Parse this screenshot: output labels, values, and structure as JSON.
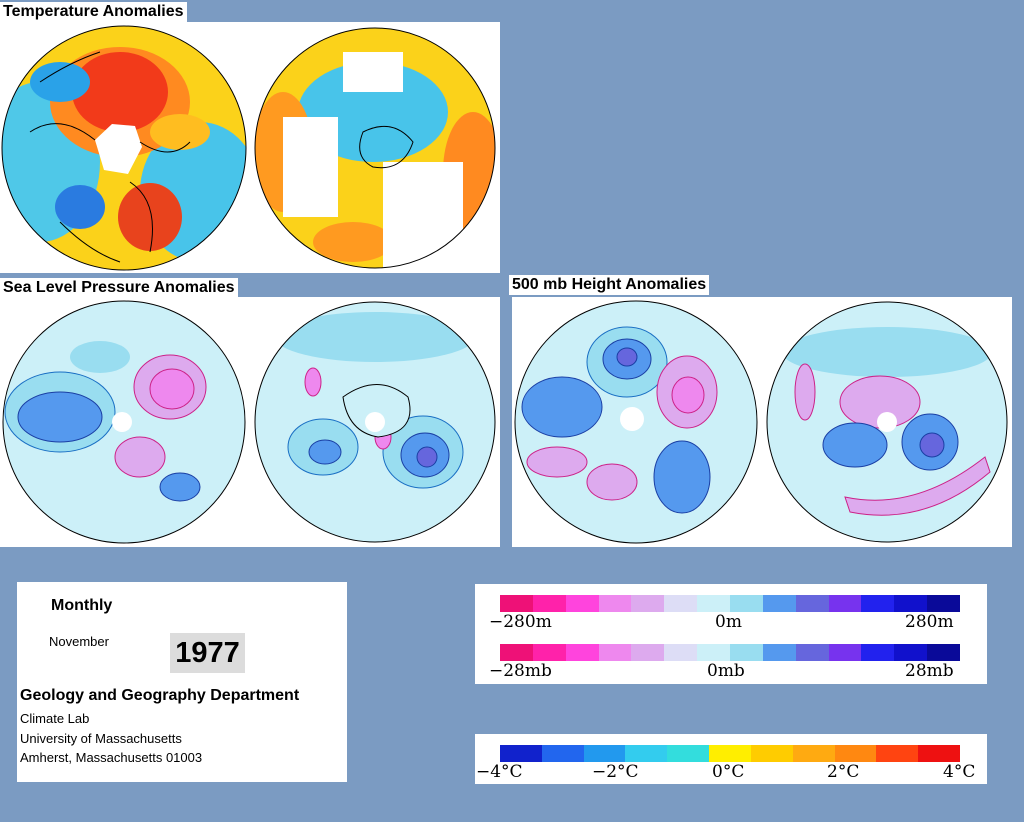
{
  "sections": {
    "temperature": {
      "title": "Temperature Anomalies"
    },
    "slp": {
      "title": "Sea Level Pressure Anomalies"
    },
    "height500": {
      "title": "500 mb Height Anomalies"
    }
  },
  "info": {
    "period": "Monthly",
    "month": "November",
    "year": "1977",
    "department": "Geology and Geography Department",
    "lab": "Climate Lab",
    "university": "University of Massachusetts",
    "address": "Amherst, Massachusetts 01003"
  },
  "legends": {
    "height": {
      "min": "−280m",
      "mid": "0m",
      "max": "280m"
    },
    "pressure": {
      "min": "−28mb",
      "mid": "0mb",
      "max": "28mb"
    },
    "temperature": {
      "t1": "−4°C",
      "t2": "−2°C",
      "t3": "0°C",
      "t4": "2°C",
      "t5": "4°C"
    }
  },
  "colors": {
    "page_background": "#7b9bc2",
    "anomaly_ramp": [
      "#ee1177",
      "#ff22aa",
      "#ff44dd",
      "#ee88ee",
      "#ddaaee",
      "#ddddf6",
      "#ccf0f8",
      "#99ddf0",
      "#5599ee",
      "#6666dd",
      "#7733ee",
      "#2222ee",
      "#1111cc",
      "#0a0a99"
    ],
    "temperature_ramp": [
      "#1122cc",
      "#2266ee",
      "#2299ee",
      "#33ccee",
      "#33dddd",
      "#ffee00",
      "#ffcc00",
      "#ffaa11",
      "#ff8811",
      "#ff4411",
      "#ee1111"
    ]
  }
}
